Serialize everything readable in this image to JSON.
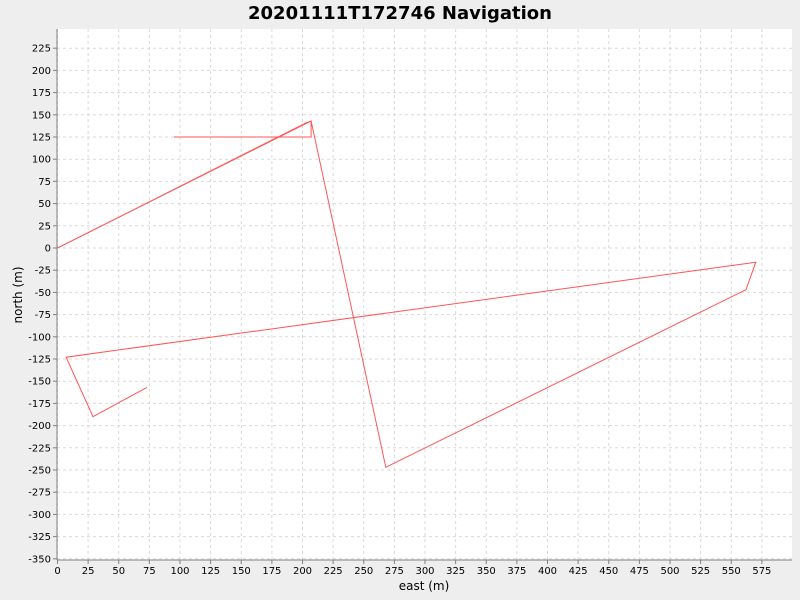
{
  "chart_data": {
    "type": "line",
    "title": "20201111T172746 Navigation",
    "xlabel": "east (m)",
    "ylabel": "north (m)",
    "xlim": [
      0,
      600
    ],
    "ylim": [
      -350,
      245
    ],
    "xticks": [
      0,
      25,
      50,
      75,
      100,
      125,
      150,
      175,
      200,
      225,
      250,
      275,
      300,
      325,
      350,
      375,
      400,
      425,
      450,
      475,
      500,
      525,
      550,
      575
    ],
    "yticks": [
      225,
      200,
      175,
      150,
      125,
      100,
      75,
      50,
      25,
      0,
      -25,
      -50,
      -75,
      -100,
      -125,
      -150,
      -175,
      -200,
      -225,
      -250,
      -275,
      -300,
      -325,
      -350
    ],
    "grid": true,
    "series": [
      {
        "color": "#ff5555",
        "points": [
          [
            95,
            125
          ],
          [
            207,
            125
          ],
          [
            207,
            143
          ],
          [
            203,
            141
          ],
          [
            0,
            0
          ],
          [
            0,
            0
          ],
          [
            207,
            143
          ],
          [
            268,
            -247
          ],
          [
            562,
            -47
          ],
          [
            570,
            -16
          ],
          [
            7,
            -123
          ],
          [
            29,
            -190
          ],
          [
            73,
            -157
          ]
        ]
      }
    ]
  }
}
